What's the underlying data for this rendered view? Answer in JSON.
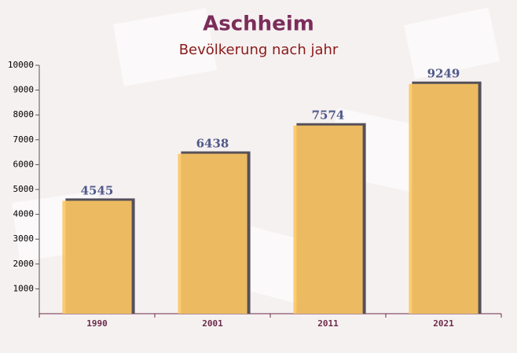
{
  "chart_data": {
    "type": "bar",
    "title": "Aschheim",
    "subtitle": "Bevölkerung nach jahr",
    "categories": [
      "1990",
      "2001",
      "2011",
      "2021"
    ],
    "values": [
      4545,
      6438,
      7574,
      9249
    ],
    "color": "#fdc662",
    "ylim": [
      0,
      10000
    ],
    "yticks": [
      1000,
      2000,
      3000,
      4000,
      5000,
      6000,
      7000,
      8000,
      9000,
      10000
    ]
  }
}
